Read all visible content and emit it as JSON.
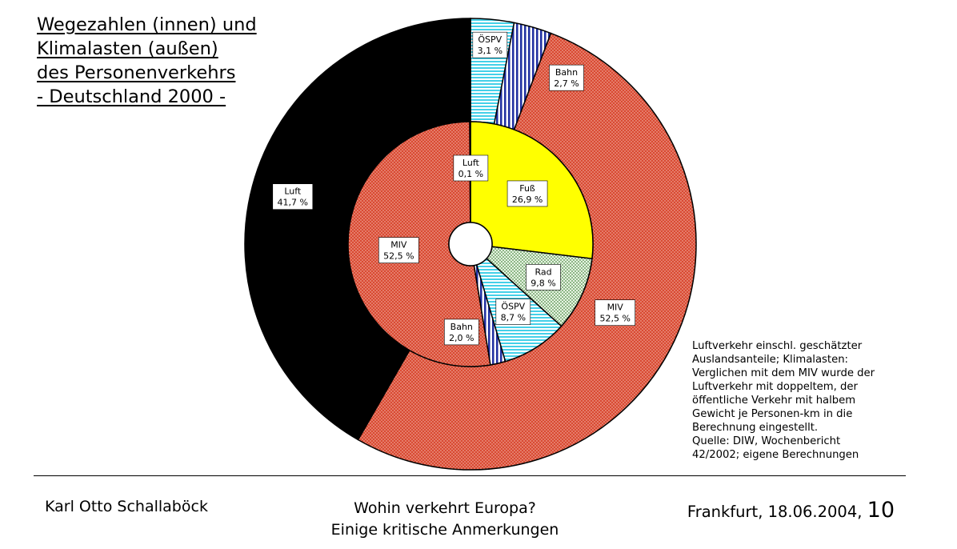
{
  "title": [
    "Wegezahlen (innen) und",
    "Klimalasten (außen)",
    "des Personenverkehrs",
    "- Deutschland 2000 -"
  ],
  "chart_data": {
    "type": "pie",
    "variant": "donut-nested",
    "rings": [
      {
        "ring": "inner",
        "name": "Wegezahlen",
        "slices": [
          {
            "label": "Fuß",
            "value_text": "26,9 %",
            "value": 26.9,
            "color": "#ffff00",
            "pattern": "solid"
          },
          {
            "label": "Rad",
            "value_text": "9,8 %",
            "value": 9.8,
            "color": "#c8e6c4",
            "pattern": "dots-green"
          },
          {
            "label": "ÖSPV",
            "value_text": "8,7 %",
            "value": 8.7,
            "color": "#b8f2ff",
            "pattern": "horizontal-lines"
          },
          {
            "label": "Bahn",
            "value_text": "2,0 %",
            "value": 2.0,
            "color": "#2a3bb0",
            "pattern": "vertical-stripes"
          },
          {
            "label": "MIV",
            "value_text": "52,5 %",
            "value": 52.5,
            "color": "#d94a32",
            "pattern": "dots-red"
          },
          {
            "label": "Luft",
            "value_text": "0,1 %",
            "value": 0.1,
            "color": "#000000",
            "pattern": "solid"
          }
        ]
      },
      {
        "ring": "outer",
        "name": "Klimalasten",
        "slices": [
          {
            "label": "ÖSPV",
            "value_text": "3,1 %",
            "value": 3.1,
            "color": "#b8f2ff",
            "pattern": "horizontal-lines"
          },
          {
            "label": "Bahn",
            "value_text": "2,7 %",
            "value": 2.7,
            "color": "#2a3bb0",
            "pattern": "vertical-stripes"
          },
          {
            "label": "MIV",
            "value_text": "52,5 %",
            "value": 52.5,
            "color": "#d94a32",
            "pattern": "dots-red"
          },
          {
            "label": "Luft",
            "value_text": "41,7 %",
            "value": 41.7,
            "color": "#000000",
            "pattern": "solid"
          }
        ]
      }
    ],
    "start_angle_deg": 0,
    "direction": "clockwise"
  },
  "note": [
    "Luftverkehr einschl. geschätzter",
    "Auslandsanteile; Klimalasten:",
    "Verglichen mit dem MIV wurde der",
    "Luftverkehr mit doppeltem, der",
    "öffentliche Verkehr mit halbem",
    "Gewicht je Personen-km in die",
    "Berechnung eingestellt.",
    "Quelle: DIW, Wochenbericht",
    "42/2002; eigene Berechnungen"
  ],
  "footer": {
    "author": "Karl Otto Schallaböck",
    "talk_title": [
      "Wohin verkehrt Europa?",
      "Einige kritische Anmerkungen"
    ],
    "place_date": "Frankfurt, 18.06.2004,",
    "slide_number": "10"
  }
}
